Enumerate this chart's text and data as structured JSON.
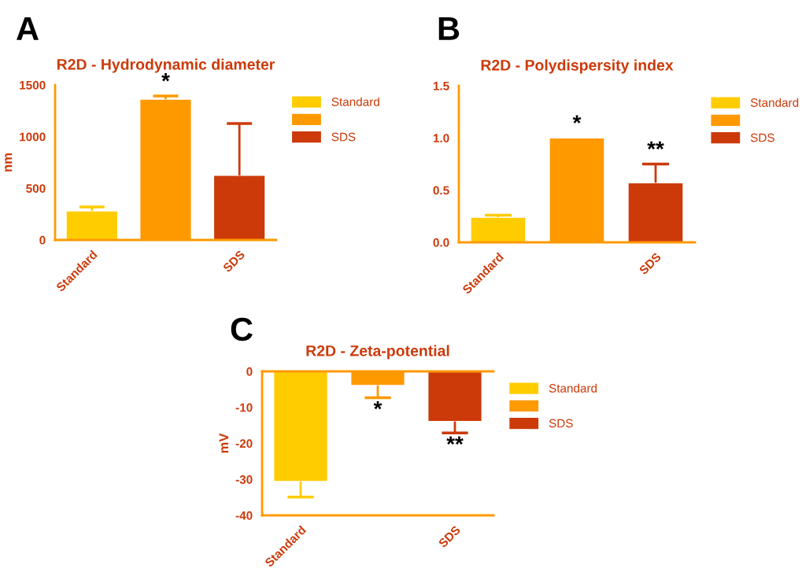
{
  "chart_data": [
    {
      "type": "bar",
      "title": "R2D - Hydrodynamic diameter",
      "ylabel": "nm",
      "categories": [
        "Standard",
        null,
        "SDS"
      ],
      "ylim": [
        0,
        1500
      ],
      "yticks": [
        0,
        500,
        1000,
        1500
      ],
      "legend": "right",
      "annotations": [
        "A"
      ],
      "series": [
        {
          "name": "Standard",
          "color": "#ffcc00",
          "values": [
            282,
            null,
            null
          ],
          "errors": [
            [
              282,
              320
            ],
            null,
            null
          ]
        },
        {
          "color": "#ff9900",
          "values": [
            null,
            1363,
            null
          ],
          "errors": [
            null,
            [
              1363,
              1394
            ],
            null
          ],
          "value_labels": [
            null,
            "*",
            null
          ]
        },
        {
          "name": "SDS",
          "color": "#cc3a0a",
          "values": [
            null,
            null,
            625
          ],
          "errors": [
            null,
            null,
            [
              625,
              1127
            ]
          ]
        }
      ]
    },
    {
      "type": "bar",
      "title": "R2D - Polydispersity index",
      "categories": [
        "Standard",
        null,
        "SDS"
      ],
      "ylim": [
        0,
        1.5
      ],
      "yticks": [
        {
          "value": 0,
          "label": "0.0"
        },
        0.5,
        {
          "value": 1,
          "label": "1.0"
        },
        1.5
      ],
      "legend": "right",
      "annotations": [
        "B"
      ],
      "series": [
        {
          "name": "Standard",
          "color": "#ffcc00",
          "values": [
            0.24,
            null,
            null
          ],
          "errors": [
            [
              0.24,
              0.26
            ],
            null,
            null
          ]
        },
        {
          "color": "#ff9900",
          "values": [
            null,
            1.0,
            null
          ],
          "value_labels": [
            null,
            "*",
            null
          ]
        },
        {
          "name": "SDS",
          "color": "#cc3a0a",
          "values": [
            null,
            null,
            0.57
          ],
          "errors": [
            null,
            null,
            [
              0.57,
              0.75
            ]
          ],
          "value_labels": [
            null,
            null,
            "**"
          ]
        }
      ]
    },
    {
      "type": "bar",
      "title": "R2D - Zeta-potential",
      "ylabel": "mV",
      "categories": [
        "Standard",
        null,
        "SDS"
      ],
      "ylim": [
        -40,
        0
      ],
      "yticks": [
        -40,
        -30,
        -20,
        -10,
        0
      ],
      "legend": "right",
      "annotations": [
        "C"
      ],
      "series": [
        {
          "name": "Standard",
          "color": "#ffcc00",
          "values": [
            -30.6,
            null,
            null
          ],
          "errors": [
            [
              -34.9,
              -30.6
            ],
            null,
            null
          ]
        },
        {
          "color": "#ff9900",
          "values": [
            null,
            -3.9,
            null
          ],
          "errors": [
            null,
            [
              -7.3,
              -3.9
            ],
            null
          ],
          "value_labels": [
            null,
            "*",
            null
          ]
        },
        {
          "name": "SDS",
          "color": "#cc3a0a",
          "values": [
            null,
            null,
            -13.9
          ],
          "errors": [
            null,
            null,
            [
              -17.1,
              -13.9
            ]
          ],
          "value_labels": [
            null,
            null,
            "**"
          ]
        }
      ]
    }
  ]
}
